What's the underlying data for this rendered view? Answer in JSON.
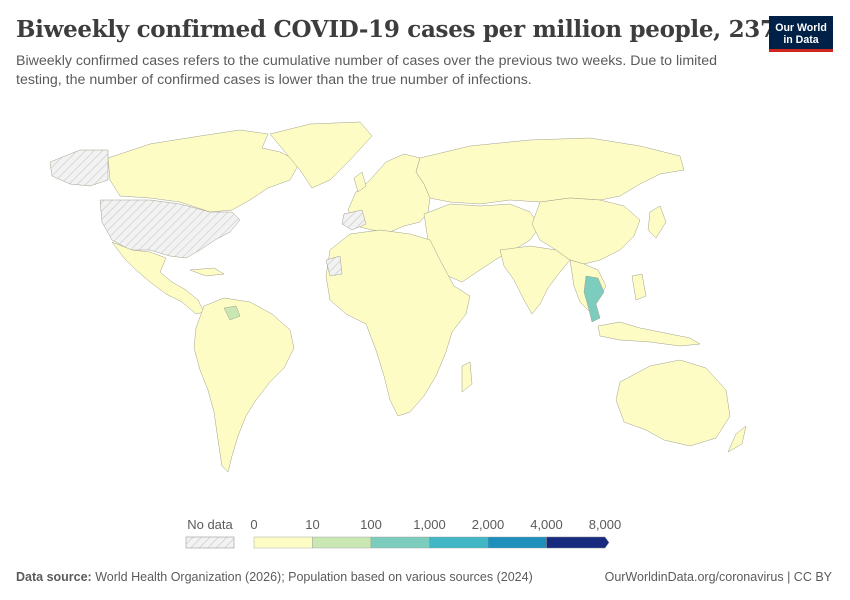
{
  "header": {
    "title": "Biweekly confirmed COVID-19 cases per million people, 2371",
    "subtitle": "Biweekly confirmed cases refers to the cumulative number of cases over the previous two weeks. Due to limited testing, the number of confirmed cases is lower than the true number of infections."
  },
  "logo": {
    "line1": "Our World",
    "line2": "in Data"
  },
  "legend": {
    "no_data_label": "No data",
    "bins": [
      {
        "label": "0",
        "color": "#fdfcc5"
      },
      {
        "label": "10",
        "color": "#c8e7b3"
      },
      {
        "label": "100",
        "color": "#7dcdbf"
      },
      {
        "label": "1,000",
        "color": "#41b6c4"
      },
      {
        "label": "2,000",
        "color": "#1f8fbc"
      },
      {
        "label": "4,000",
        "color": "#2558a6"
      },
      {
        "label": "8,000",
        "color": "#172a7e"
      }
    ]
  },
  "footer": {
    "source_label": "Data source:",
    "source_text": "World Health Organization (2026); Population based on various sources (2024)",
    "url": "OurWorldinData.org/coronavirus | CC BY"
  }
}
